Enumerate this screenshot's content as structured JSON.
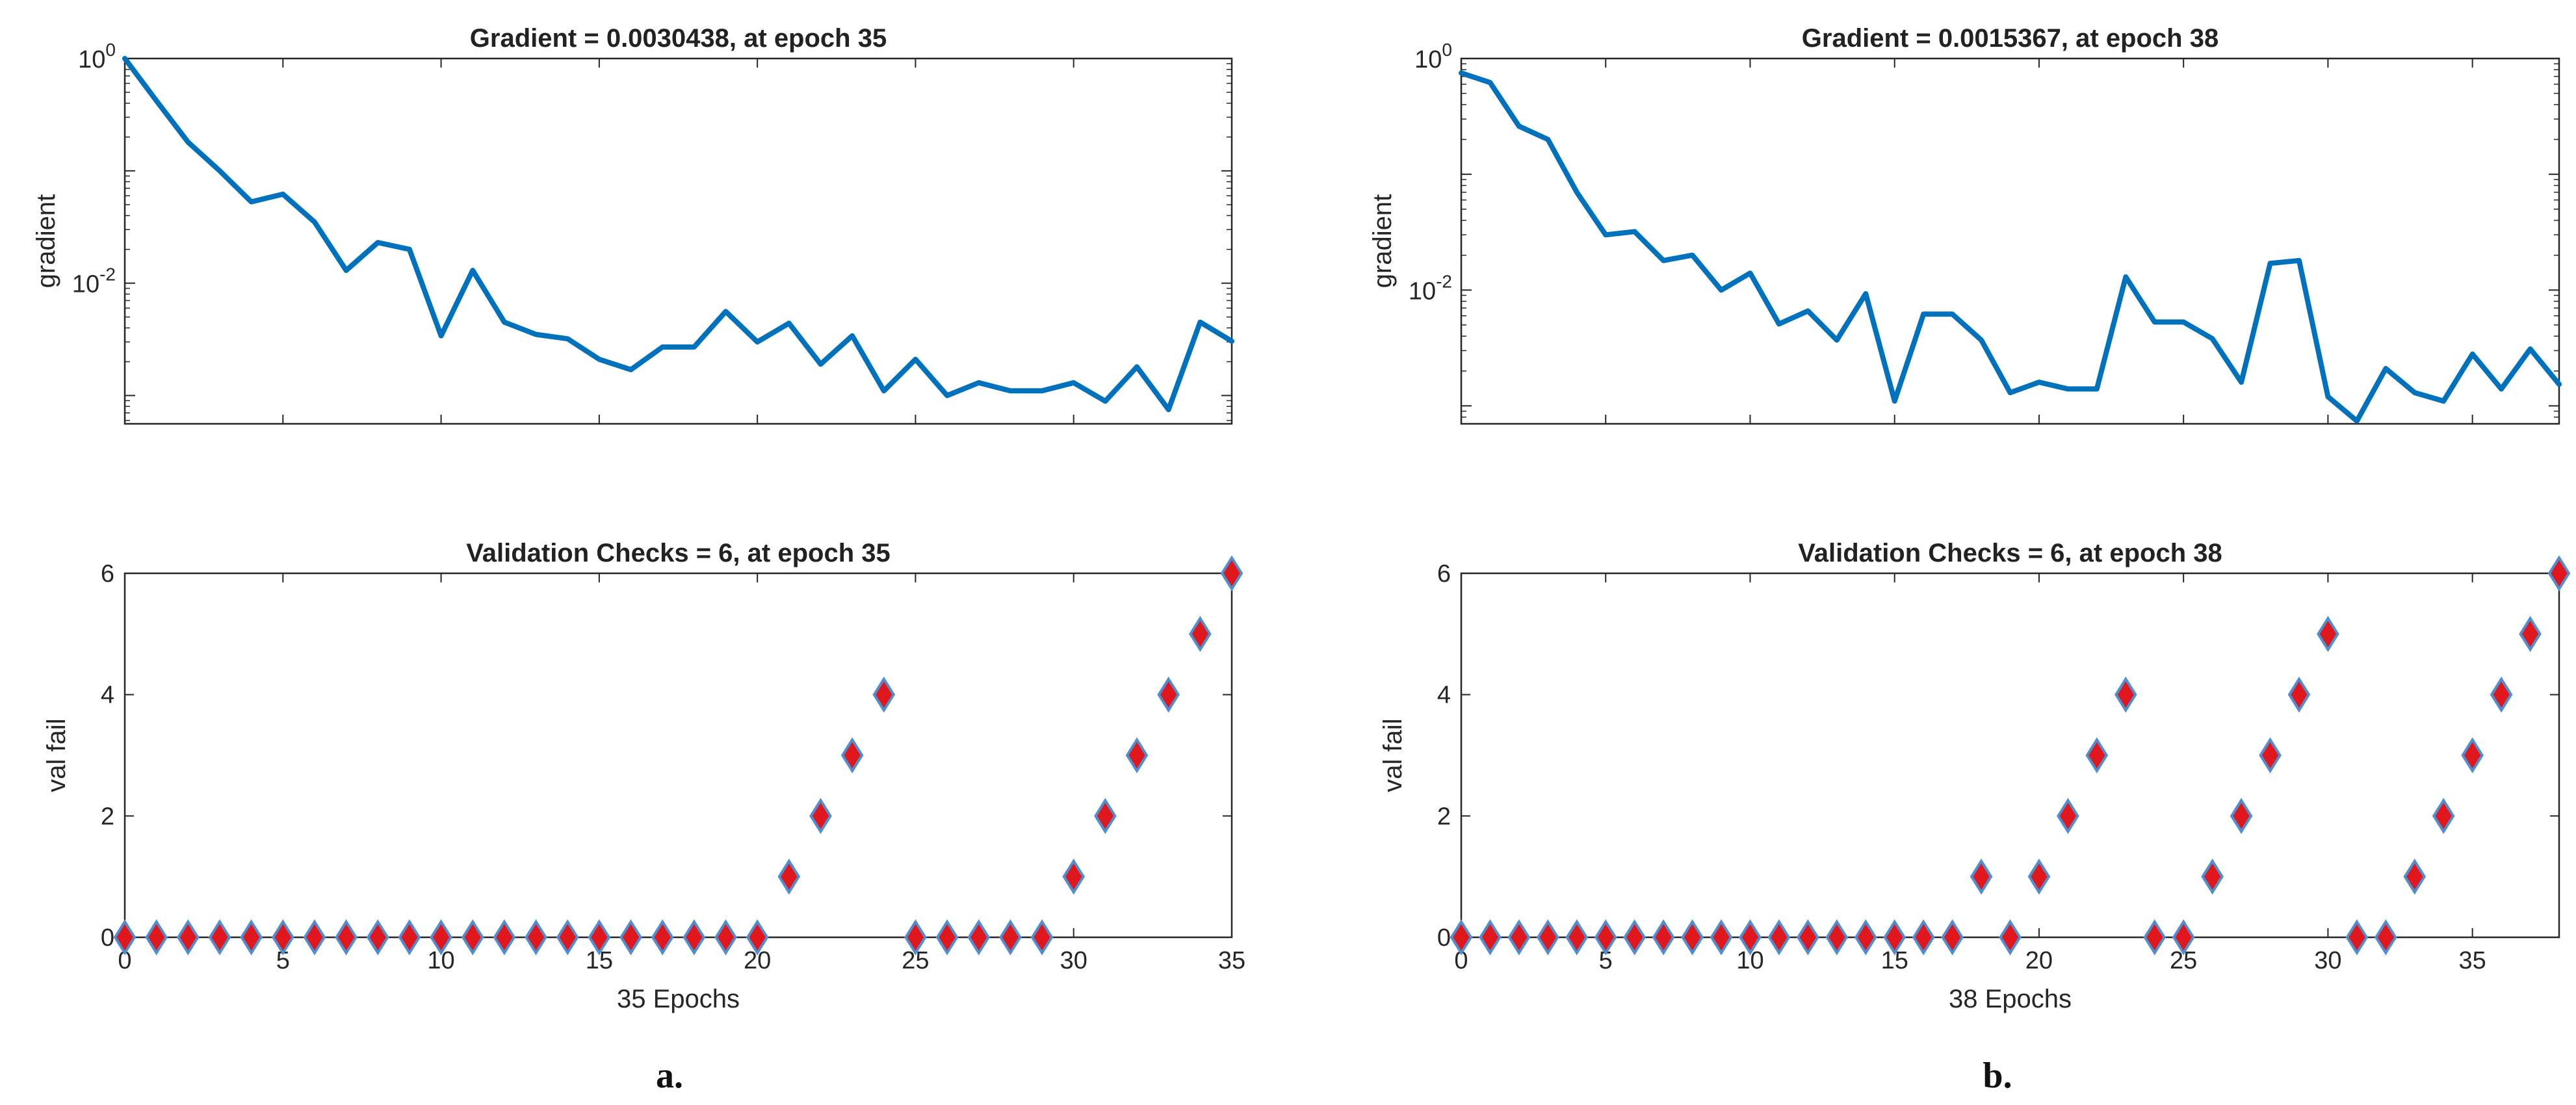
{
  "chart_data": [
    {
      "id": "a",
      "caption": "a.",
      "gradient": {
        "type": "line",
        "title": "Gradient = 0.0030438, at epoch 35",
        "ylabel": "gradient",
        "yscale": "log",
        "ylim": [
          0.00056,
          1.0
        ],
        "xlim": [
          0,
          35
        ],
        "ytick_labels": [
          {
            "value": 1.0,
            "base": "10",
            "exp": "0"
          },
          {
            "value": 0.01,
            "base": "10",
            "exp": "-2"
          }
        ],
        "x": [
          0,
          1,
          2,
          3,
          4,
          5,
          6,
          7,
          8,
          9,
          10,
          11,
          12,
          13,
          14,
          15,
          16,
          17,
          18,
          19,
          20,
          21,
          22,
          23,
          24,
          25,
          26,
          27,
          28,
          29,
          30,
          31,
          32,
          33,
          34,
          35
        ],
        "values": [
          1.0,
          0.42,
          0.18,
          0.1,
          0.053,
          0.062,
          0.035,
          0.013,
          0.023,
          0.02,
          0.0034,
          0.013,
          0.0045,
          0.0035,
          0.0032,
          0.0021,
          0.0017,
          0.0027,
          0.0027,
          0.0056,
          0.003,
          0.0044,
          0.0019,
          0.0034,
          0.0011,
          0.0021,
          0.001,
          0.0013,
          0.0011,
          0.0011,
          0.0013,
          0.00089,
          0.0018,
          0.00075,
          0.0045,
          0.0030438
        ],
        "color": "#0072BD"
      },
      "validation": {
        "type": "scatter",
        "title": "Validation Checks = 6, at epoch 35",
        "ylabel": "val fail",
        "xlabel": "35 Epochs",
        "ylim": [
          0,
          6
        ],
        "xlim": [
          0,
          35
        ],
        "yticks": [
          0,
          2,
          4,
          6
        ],
        "xticks": [
          0,
          5,
          10,
          15,
          20,
          25,
          30,
          35
        ],
        "x": [
          0,
          1,
          2,
          3,
          4,
          5,
          6,
          7,
          8,
          9,
          10,
          11,
          12,
          13,
          14,
          15,
          16,
          17,
          18,
          19,
          20,
          21,
          22,
          23,
          24,
          25,
          26,
          27,
          28,
          29,
          30,
          31,
          32,
          33,
          34,
          35
        ],
        "values": [
          0,
          0,
          0,
          0,
          0,
          0,
          0,
          0,
          0,
          0,
          0,
          0,
          0,
          0,
          0,
          0,
          0,
          0,
          0,
          0,
          0,
          1,
          2,
          3,
          4,
          0,
          0,
          0,
          0,
          0,
          1,
          2,
          3,
          4,
          5,
          6
        ],
        "marker": "diamond",
        "fill": "#E0181E",
        "edge": "#4F8FD1"
      }
    },
    {
      "id": "b",
      "caption": "b.",
      "gradient": {
        "type": "line",
        "title": "Gradient = 0.0015367, at epoch 38",
        "ylabel": "gradient",
        "yscale": "log",
        "ylim": [
          0.0007,
          1.0
        ],
        "xlim": [
          0,
          38
        ],
        "ytick_labels": [
          {
            "value": 1.0,
            "base": "10",
            "exp": "0"
          },
          {
            "value": 0.01,
            "base": "10",
            "exp": "-2"
          }
        ],
        "x": [
          0,
          1,
          2,
          3,
          4,
          5,
          6,
          7,
          8,
          9,
          10,
          11,
          12,
          13,
          14,
          15,
          16,
          17,
          18,
          19,
          20,
          21,
          22,
          23,
          24,
          25,
          26,
          27,
          28,
          29,
          30,
          31,
          32,
          33,
          34,
          35,
          36,
          37,
          38
        ],
        "values": [
          0.75,
          0.62,
          0.26,
          0.2,
          0.07,
          0.03,
          0.032,
          0.018,
          0.02,
          0.01,
          0.014,
          0.0051,
          0.0066,
          0.0037,
          0.0093,
          0.0011,
          0.0062,
          0.0062,
          0.0037,
          0.0013,
          0.0016,
          0.0014,
          0.0014,
          0.013,
          0.0053,
          0.0053,
          0.0038,
          0.0016,
          0.017,
          0.018,
          0.0012,
          0.00074,
          0.0021,
          0.0013,
          0.0011,
          0.0028,
          0.0014,
          0.0031,
          0.0015367
        ],
        "color": "#0072BD"
      },
      "validation": {
        "type": "scatter",
        "title": "Validation Checks = 6, at epoch 38",
        "ylabel": "val fail",
        "xlabel": "38 Epochs",
        "ylim": [
          0,
          6
        ],
        "xlim": [
          0,
          38
        ],
        "yticks": [
          0,
          2,
          4,
          6
        ],
        "xticks": [
          0,
          5,
          10,
          15,
          20,
          25,
          30,
          35
        ],
        "x": [
          0,
          1,
          2,
          3,
          4,
          5,
          6,
          7,
          8,
          9,
          10,
          11,
          12,
          13,
          14,
          15,
          16,
          17,
          18,
          19,
          20,
          21,
          22,
          23,
          24,
          25,
          26,
          27,
          28,
          29,
          30,
          31,
          32,
          33,
          34,
          35,
          36,
          37,
          38
        ],
        "values": [
          0,
          0,
          0,
          0,
          0,
          0,
          0,
          0,
          0,
          0,
          0,
          0,
          0,
          0,
          0,
          0,
          0,
          0,
          1,
          0,
          1,
          2,
          3,
          4,
          0,
          0,
          1,
          2,
          3,
          4,
          5,
          0,
          0,
          1,
          2,
          3,
          4,
          5,
          6
        ],
        "marker": "diamond",
        "fill": "#E0181E",
        "edge": "#4F8FD1"
      }
    }
  ]
}
